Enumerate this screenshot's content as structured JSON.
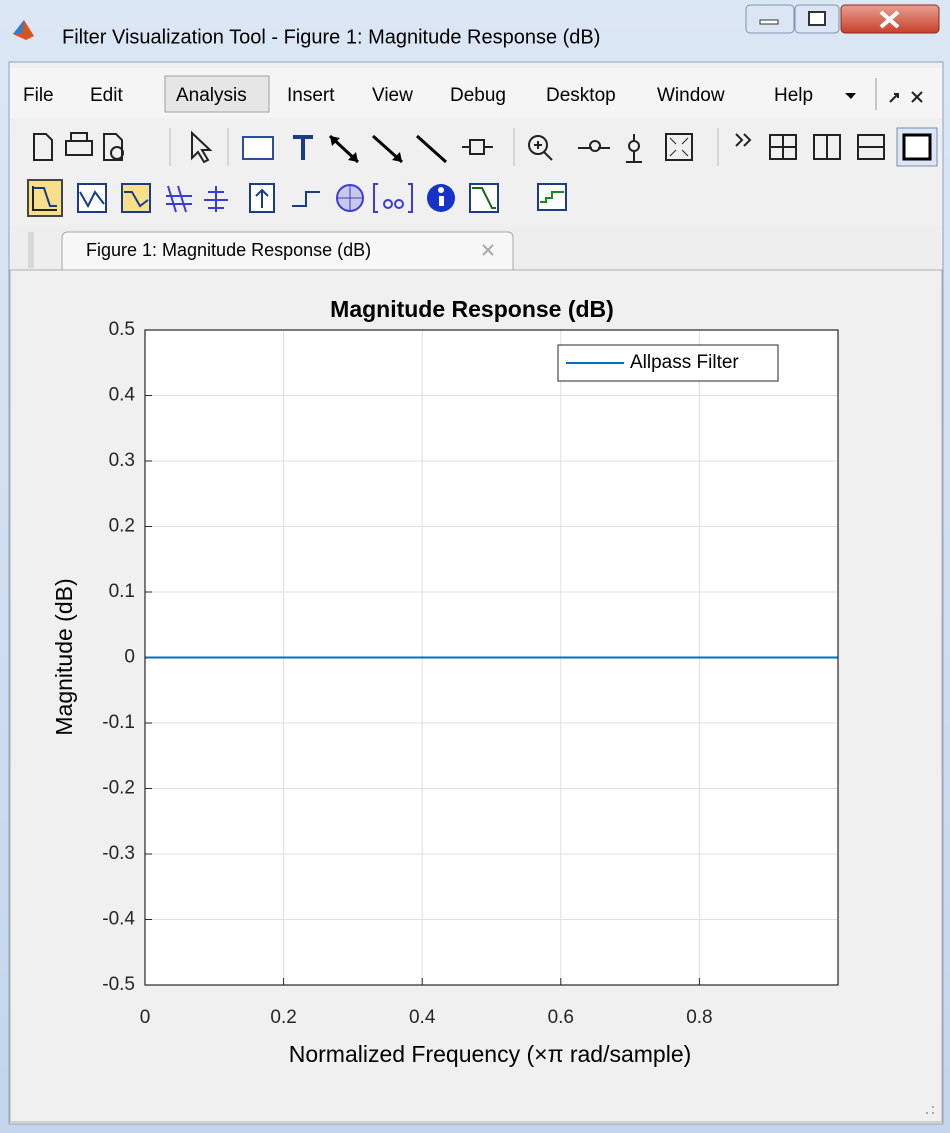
{
  "window_title": "Filter Visualization Tool - Figure 1: Magnitude Response (dB)",
  "menu": [
    "File",
    "Edit",
    "Analysis",
    "Insert",
    "View",
    "Debug",
    "Desktop",
    "Window",
    "Help"
  ],
  "tab_label": "Figure 1: Magnitude Response (dB)",
  "chart_data": {
    "type": "line",
    "title": "Magnitude Response (dB)",
    "xlabel": "Normalized Frequency (×π rad/sample)",
    "ylabel": "Magnitude (dB)",
    "x": [
      0,
      1
    ],
    "series": [
      {
        "name": "Allpass Filter",
        "color": "#0072bd",
        "values": [
          0,
          0
        ]
      }
    ],
    "xlim": [
      0,
      1
    ],
    "ylim": [
      -0.5,
      0.5
    ],
    "xticks": [
      0,
      0.2,
      0.4,
      0.6,
      0.8
    ],
    "yticks": [
      -0.5,
      -0.4,
      -0.3,
      -0.2,
      -0.1,
      0,
      0.1,
      0.2,
      0.3,
      0.4,
      0.5
    ],
    "grid": true,
    "legend": "upper right"
  }
}
